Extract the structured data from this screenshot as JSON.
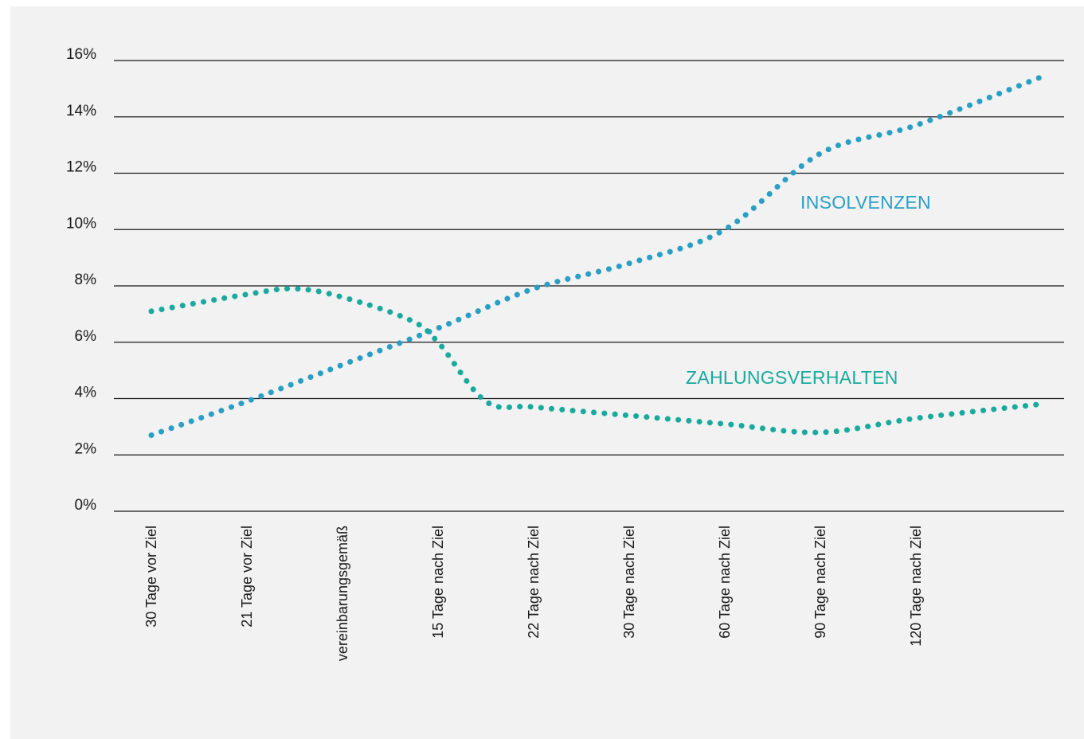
{
  "chart_data": {
    "type": "line",
    "title": "",
    "xlabel": "",
    "ylabel": "",
    "ylim": [
      0,
      16
    ],
    "yticks": [
      "0%",
      "2%",
      "4%",
      "6%",
      "8%",
      "10%",
      "12%",
      "14%",
      "16%"
    ],
    "categories": [
      "30 Tage vor Ziel",
      "21 Tage vor Ziel",
      "vereinbarungsgemäß",
      "15 Tage nach Ziel",
      "22 Tage nach Ziel",
      "30 Tage nach Ziel",
      "60 Tage nach Ziel",
      "90 Tage nach Ziel",
      "120 Tage nach Ziel"
    ],
    "grid": true,
    "line_style": "dotted",
    "series": [
      {
        "name": "INSOLVENZEN",
        "color": "#2a9fc4",
        "points": [
          [
            0,
            2.7
          ],
          [
            1,
            3.9
          ],
          [
            2,
            5.2
          ],
          [
            3,
            6.5
          ],
          [
            4,
            7.9
          ],
          [
            5,
            8.8
          ],
          [
            6,
            10.0
          ],
          [
            7,
            12.7
          ],
          [
            8,
            13.7
          ],
          [
            9.3,
            15.4
          ]
        ]
      },
      {
        "name": "ZAHLUNGSVERHALTEN",
        "color": "#1aaa9d",
        "points": [
          [
            0,
            7.1
          ],
          [
            1,
            7.7
          ],
          [
            1.5,
            7.9
          ],
          [
            2,
            7.6
          ],
          [
            2.7,
            6.8
          ],
          [
            3,
            6.0
          ],
          [
            3.5,
            3.9
          ],
          [
            4,
            3.7
          ],
          [
            5,
            3.4
          ],
          [
            6,
            3.1
          ],
          [
            7,
            2.8
          ],
          [
            8,
            3.3
          ],
          [
            9.3,
            3.8
          ]
        ]
      }
    ]
  }
}
